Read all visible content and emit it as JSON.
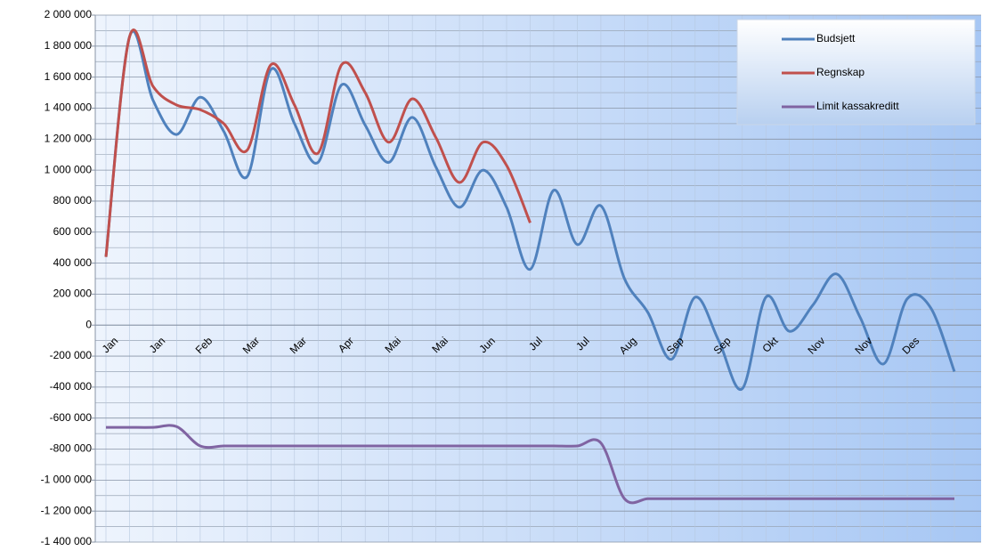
{
  "chart_data": {
    "type": "line",
    "categories": [
      "Jan",
      null,
      "Jan",
      null,
      "Feb",
      null,
      "Mar",
      null,
      "Mar",
      null,
      "Apr",
      null,
      "Mai",
      null,
      "Mai",
      null,
      "Jun",
      null,
      "Jul",
      null,
      "Jul",
      null,
      "Aug",
      null,
      "Sep",
      null,
      "Sep",
      null,
      "Okt",
      null,
      "Nov",
      null,
      "Nov",
      null,
      "Des",
      null,
      null
    ],
    "series": [
      {
        "name": "Budsjett",
        "color": "#4f81bd",
        "values": [
          440000,
          1860000,
          1450000,
          1230000,
          1470000,
          1250000,
          960000,
          1650000,
          1300000,
          1050000,
          1550000,
          1290000,
          1050000,
          1340000,
          1020000,
          760000,
          1000000,
          760000,
          360000,
          870000,
          520000,
          770000,
          300000,
          80000,
          -220000,
          180000,
          -100000,
          -410000,
          180000,
          -40000,
          130000,
          330000,
          50000,
          -250000,
          170000,
          110000,
          -300000
        ]
      },
      {
        "name": "Regnskap",
        "color": "#c0504d",
        "values": [
          440000,
          1860000,
          1540000,
          1420000,
          1390000,
          1300000,
          1130000,
          1680000,
          1420000,
          1110000,
          1680000,
          1500000,
          1180000,
          1460000,
          1210000,
          920000,
          1180000,
          1030000,
          660000,
          null,
          null,
          null,
          null,
          null,
          null,
          null,
          null,
          null,
          null,
          null,
          null,
          null,
          null,
          null,
          null,
          null,
          null
        ]
      },
      {
        "name": "Limit kassakreditt",
        "color": "#8064a2",
        "values": [
          -660000,
          -660000,
          -660000,
          -655000,
          -780000,
          -780000,
          -780000,
          -780000,
          -780000,
          -780000,
          -780000,
          -780000,
          -780000,
          -780000,
          -780000,
          -780000,
          -780000,
          -780000,
          -780000,
          -780000,
          -780000,
          -760000,
          -1120000,
          -1120000,
          -1120000,
          -1120000,
          -1120000,
          -1120000,
          -1120000,
          -1120000,
          -1120000,
          -1120000,
          -1120000,
          -1120000,
          -1120000,
          -1120000,
          -1120000
        ]
      }
    ],
    "ylim": [
      -1400000,
      2000000
    ],
    "yticks": [
      {
        "value": -1400000,
        "label": "-1 400 000"
      },
      {
        "value": -1200000,
        "label": "-1 200 000"
      },
      {
        "value": -1000000,
        "label": "-1 000 000"
      },
      {
        "value": -800000,
        "label": "-800 000"
      },
      {
        "value": -600000,
        "label": "-600 000"
      },
      {
        "value": -400000,
        "label": "-400 000"
      },
      {
        "value": -200000,
        "label": "-200 000"
      },
      0,
      {
        "value": 200000,
        "label": "200 000"
      },
      {
        "value": 400000,
        "label": "400 000"
      },
      {
        "value": 600000,
        "label": "600 000"
      },
      {
        "value": 800000,
        "label": "800 000"
      },
      {
        "value": 1000000,
        "label": "1 000 000"
      },
      {
        "value": 1200000,
        "label": "1 200 000"
      },
      {
        "value": 1400000,
        "label": "1 400 000"
      },
      {
        "value": 1600000,
        "label": "1 600 000"
      },
      {
        "value": 1800000,
        "label": "1 800 000"
      },
      {
        "value": 2000000,
        "label": "2 000 000"
      }
    ],
    "grid": true,
    "legend": "top-right"
  }
}
